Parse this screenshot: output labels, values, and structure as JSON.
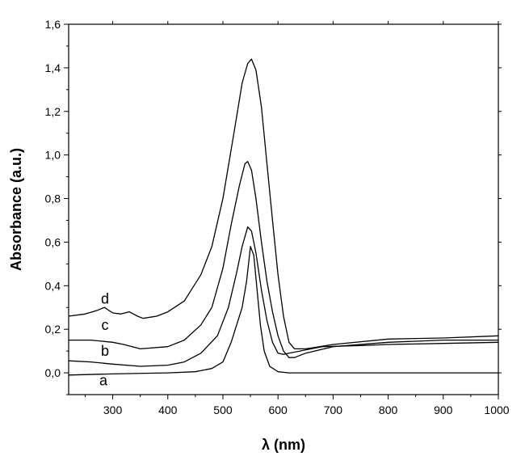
{
  "chart_data": {
    "type": "line",
    "xlabel": "λ (nm)",
    "ylabel": "Absorbance (a.u.)",
    "xlim": [
      220,
      1000
    ],
    "ylim": [
      -0.1,
      1.6
    ],
    "xticks": [
      300,
      400,
      500,
      600,
      700,
      800,
      900,
      1000
    ],
    "xtick_labels": [
      "300",
      "400",
      "500",
      "600",
      "700",
      "800",
      "900",
      "1000"
    ],
    "yticks": [
      0.0,
      0.2,
      0.4,
      0.6,
      0.8,
      1.0,
      1.2,
      1.4,
      1.6
    ],
    "ytick_labels": [
      "0,0",
      "0,2",
      "0,4",
      "0,6",
      "0,8",
      "1,0",
      "1,2",
      "1,4",
      "1,6"
    ],
    "grid": false,
    "legend": "none",
    "series": [
      {
        "name": "a",
        "points": [
          [
            220,
            -0.01
          ],
          [
            300,
            -0.005
          ],
          [
            400,
            0.0
          ],
          [
            450,
            0.005
          ],
          [
            480,
            0.02
          ],
          [
            500,
            0.05
          ],
          [
            515,
            0.14
          ],
          [
            525,
            0.22
          ],
          [
            535,
            0.3
          ],
          [
            543,
            0.42
          ],
          [
            550,
            0.58
          ],
          [
            556,
            0.54
          ],
          [
            562,
            0.38
          ],
          [
            568,
            0.22
          ],
          [
            575,
            0.1
          ],
          [
            585,
            0.03
          ],
          [
            600,
            0.005
          ],
          [
            620,
            0.0
          ],
          [
            700,
            0.0
          ],
          [
            800,
            0.0
          ],
          [
            900,
            0.0
          ],
          [
            1000,
            0.0
          ]
        ]
      },
      {
        "name": "b",
        "points": [
          [
            220,
            0.055
          ],
          [
            260,
            0.05
          ],
          [
            300,
            0.04
          ],
          [
            350,
            0.03
          ],
          [
            400,
            0.035
          ],
          [
            430,
            0.05
          ],
          [
            460,
            0.09
          ],
          [
            490,
            0.17
          ],
          [
            510,
            0.3
          ],
          [
            525,
            0.46
          ],
          [
            535,
            0.58
          ],
          [
            545,
            0.67
          ],
          [
            552,
            0.65
          ],
          [
            560,
            0.55
          ],
          [
            570,
            0.38
          ],
          [
            580,
            0.24
          ],
          [
            590,
            0.14
          ],
          [
            600,
            0.09
          ],
          [
            610,
            0.085
          ],
          [
            620,
            0.09
          ],
          [
            640,
            0.1
          ],
          [
            680,
            0.12
          ],
          [
            750,
            0.125
          ],
          [
            800,
            0.13
          ],
          [
            900,
            0.135
          ],
          [
            1000,
            0.14
          ]
        ]
      },
      {
        "name": "c",
        "points": [
          [
            220,
            0.15
          ],
          [
            260,
            0.15
          ],
          [
            300,
            0.14
          ],
          [
            320,
            0.13
          ],
          [
            350,
            0.11
          ],
          [
            400,
            0.12
          ],
          [
            430,
            0.15
          ],
          [
            460,
            0.22
          ],
          [
            480,
            0.3
          ],
          [
            500,
            0.48
          ],
          [
            515,
            0.68
          ],
          [
            530,
            0.86
          ],
          [
            540,
            0.96
          ],
          [
            545,
            0.97
          ],
          [
            552,
            0.93
          ],
          [
            560,
            0.8
          ],
          [
            570,
            0.6
          ],
          [
            580,
            0.42
          ],
          [
            590,
            0.28
          ],
          [
            600,
            0.17
          ],
          [
            610,
            0.1
          ],
          [
            620,
            0.07
          ],
          [
            630,
            0.07
          ],
          [
            650,
            0.09
          ],
          [
            700,
            0.12
          ],
          [
            800,
            0.14
          ],
          [
            900,
            0.15
          ],
          [
            1000,
            0.15
          ]
        ]
      },
      {
        "name": "d",
        "points": [
          [
            220,
            0.26
          ],
          [
            250,
            0.27
          ],
          [
            270,
            0.285
          ],
          [
            285,
            0.3
          ],
          [
            300,
            0.275
          ],
          [
            315,
            0.27
          ],
          [
            330,
            0.28
          ],
          [
            345,
            0.26
          ],
          [
            355,
            0.25
          ],
          [
            380,
            0.26
          ],
          [
            400,
            0.28
          ],
          [
            430,
            0.33
          ],
          [
            460,
            0.45
          ],
          [
            480,
            0.58
          ],
          [
            500,
            0.8
          ],
          [
            520,
            1.1
          ],
          [
            535,
            1.33
          ],
          [
            545,
            1.42
          ],
          [
            552,
            1.44
          ],
          [
            560,
            1.39
          ],
          [
            570,
            1.22
          ],
          [
            580,
            0.96
          ],
          [
            590,
            0.7
          ],
          [
            600,
            0.45
          ],
          [
            610,
            0.26
          ],
          [
            620,
            0.14
          ],
          [
            630,
            0.11
          ],
          [
            650,
            0.11
          ],
          [
            700,
            0.13
          ],
          [
            800,
            0.155
          ],
          [
            900,
            0.16
          ],
          [
            1000,
            0.17
          ]
        ]
      }
    ],
    "annotations": [
      "d",
      "c",
      "b",
      "a"
    ]
  }
}
